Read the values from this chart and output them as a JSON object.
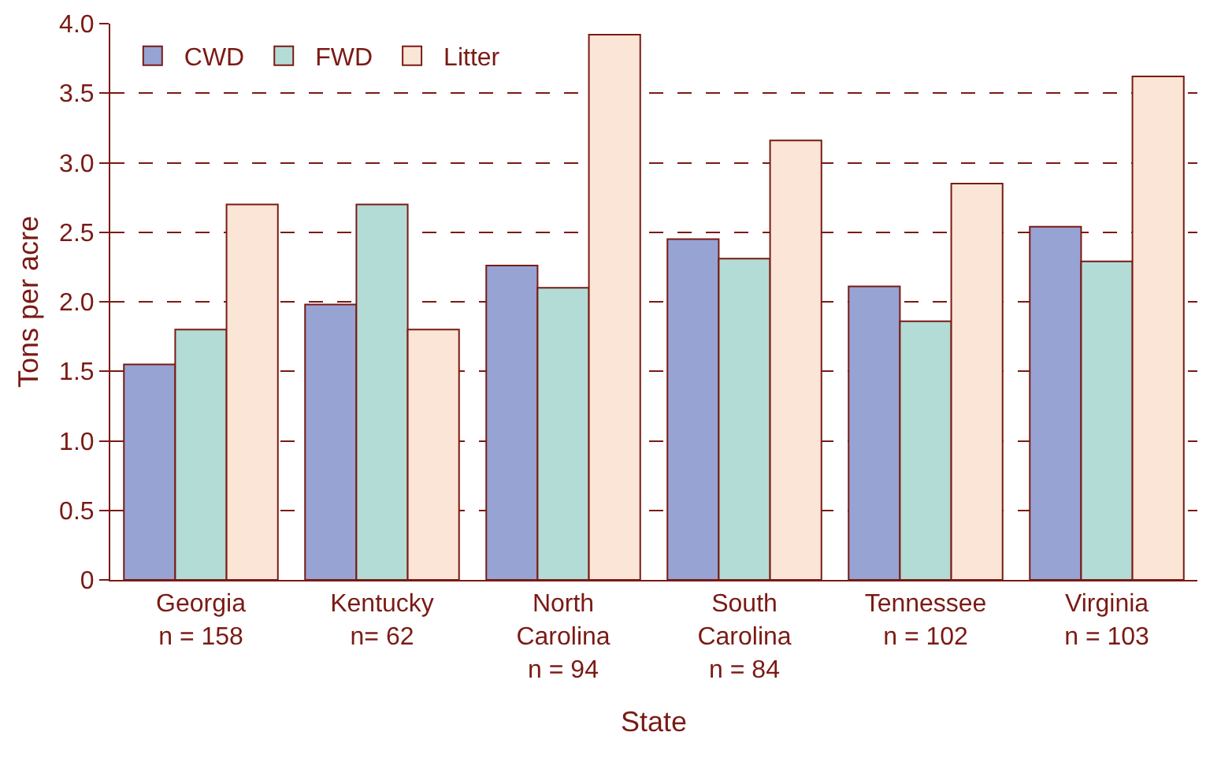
{
  "chart_data": {
    "type": "bar",
    "xlabel": "State",
    "ylabel": "Tons per acre",
    "categories": [
      "Georgia\nn = 158",
      "Kentucky\nn= 62",
      "North\nCarolina\nn = 94",
      "South\nCarolina\nn = 84",
      "Tennessee\nn = 102",
      "Virginia\nn = 103"
    ],
    "series": [
      {
        "name": "CWD",
        "color": "#97a3d3",
        "values": [
          1.55,
          1.98,
          2.26,
          2.45,
          2.11,
          2.54
        ]
      },
      {
        "name": "FWD",
        "color": "#b3dcd6",
        "values": [
          1.8,
          2.7,
          2.1,
          2.31,
          1.86,
          2.29
        ]
      },
      {
        "name": "Litter",
        "color": "#fbe5d6",
        "values": [
          2.7,
          1.8,
          3.92,
          3.16,
          2.85,
          3.62
        ]
      }
    ],
    "ylim": [
      0,
      4
    ],
    "yticks": [
      {
        "value": 0,
        "label": "0"
      },
      {
        "value": 0.5,
        "label": "0.5"
      },
      {
        "value": 1,
        "label": "1.0"
      },
      {
        "value": 1.5,
        "label": "1.5"
      },
      {
        "value": 2,
        "label": "2.0"
      },
      {
        "value": 2.5,
        "label": "2.5"
      },
      {
        "value": 3,
        "label": "3.0"
      },
      {
        "value": 3.5,
        "label": "3.5"
      },
      {
        "value": 4,
        "label": "4.0"
      }
    ],
    "grid": "y",
    "legend": "top left"
  }
}
